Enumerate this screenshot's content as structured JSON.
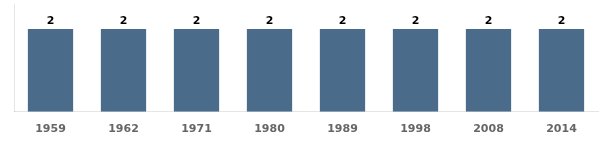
{
  "chart_data": {
    "type": "bar",
    "categories": [
      "1959",
      "1962",
      "1971",
      "1980",
      "1989",
      "1998",
      "2008",
      "2014"
    ],
    "values": [
      2,
      2,
      2,
      2,
      2,
      2,
      2,
      2
    ],
    "color": "#4a6b8a",
    "ylim": [
      0,
      2.6
    ],
    "grid": false,
    "data_labels": true,
    "tick_labels": "x"
  }
}
